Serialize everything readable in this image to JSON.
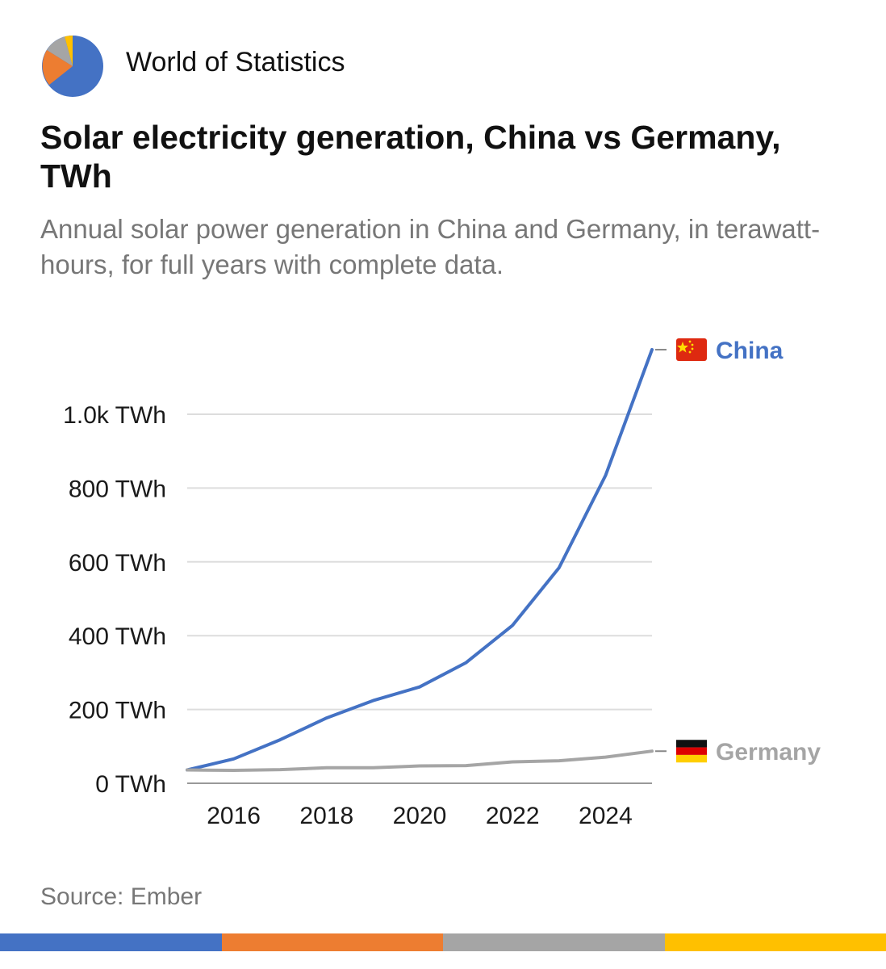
{
  "brand": {
    "name": "World of Statistics",
    "logo_icon": "pie-chart-icon",
    "logo_colors": [
      "#4472c4",
      "#ed7d31",
      "#a5a5a5",
      "#ffc000"
    ]
  },
  "title": "Solar electricity generation, China vs Germany, TWh",
  "subtitle": "Annual solar power generation in China and Germany, in terawatt-hours, for full years with complete data.",
  "source": "Source: Ember",
  "footer_colors": [
    "#4472c4",
    "#ed7d31",
    "#a5a5a5",
    "#ffc000"
  ],
  "chart_data": {
    "type": "line",
    "x": [
      2015,
      2016,
      2017,
      2018,
      2019,
      2020,
      2021,
      2022,
      2023,
      2024,
      2025
    ],
    "xticks": [
      2016,
      2018,
      2020,
      2022,
      2024
    ],
    "xtick_labels": [
      "2016",
      "2018",
      "2020",
      "2022",
      "2024"
    ],
    "xlim": [
      2015,
      2025
    ],
    "yticks": [
      0,
      200,
      400,
      600,
      800,
      1000
    ],
    "ytick_labels": [
      "0 TWh",
      "200 TWh",
      "400 TWh",
      "600 TWh",
      "800 TWh",
      "1.0k TWh"
    ],
    "ylim": [
      0,
      1200
    ],
    "grid": true,
    "series": [
      {
        "name": "China",
        "flag_icon": "china-flag-icon",
        "color": "#4472c4",
        "values": [
          36,
          66,
          118,
          177,
          224,
          261,
          327,
          428,
          584,
          834,
          1175
        ]
      },
      {
        "name": "Germany",
        "flag_icon": "germany-flag-icon",
        "color": "#a5a5a5",
        "values": [
          36,
          35,
          37,
          42,
          42,
          47,
          48,
          58,
          61,
          71,
          87
        ]
      }
    ]
  }
}
